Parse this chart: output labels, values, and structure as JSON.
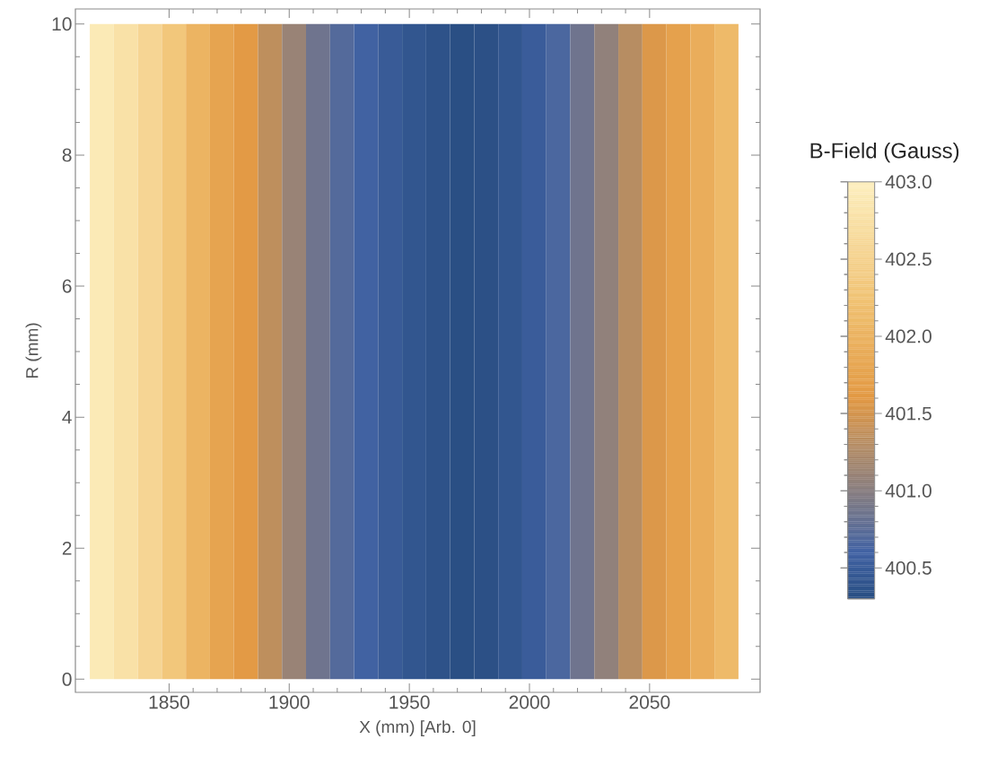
{
  "chart_data": {
    "type": "heatmap",
    "xlabel": "X (mm) [Arb. 0]",
    "ylabel": "R (mm)",
    "clabel": "B-Field (Gauss)",
    "x": [
      1822,
      1832,
      1842,
      1852,
      1862,
      1872,
      1882,
      1892,
      1902,
      1912,
      1922,
      1932,
      1942,
      1952,
      1962,
      1972,
      1982,
      1992,
      2002,
      2012,
      2022,
      2032,
      2042,
      2052,
      2062,
      2072,
      2082
    ],
    "y": [
      7.5,
      2.5
    ],
    "cells": [
      [
        402.9,
        402.75,
        402.55,
        402.3,
        402.0,
        401.75,
        401.6,
        401.35,
        401.1,
        400.85,
        400.7,
        400.58,
        400.48,
        400.4,
        400.35,
        400.3,
        400.32,
        400.4,
        400.5,
        400.65,
        400.85,
        401.05,
        401.3,
        401.55,
        401.7,
        401.9,
        402.1
      ],
      [
        402.9,
        402.75,
        402.55,
        402.3,
        402.0,
        401.75,
        401.6,
        401.35,
        401.1,
        400.85,
        400.7,
        400.58,
        400.48,
        400.4,
        400.35,
        400.3,
        400.32,
        400.4,
        400.5,
        400.65,
        400.85,
        401.05,
        401.3,
        401.55,
        401.7,
        401.9,
        402.1
      ]
    ],
    "xlim": [
      1811,
      2096
    ],
    "ylim": [
      -0.2,
      10.23
    ],
    "xticks": [
      1850,
      1900,
      1950,
      2000,
      2050
    ],
    "yticks": [
      0,
      2,
      4,
      6,
      8,
      10
    ],
    "clim": [
      400.3,
      403.0
    ],
    "cticks": [
      {
        "value": 400.5,
        "label": "400.5"
      },
      {
        "value": 401,
        "label": "401.0"
      },
      {
        "value": 401.5,
        "label": "401.5"
      },
      {
        "value": 402,
        "label": "402.0"
      },
      {
        "value": 402.5,
        "label": "402.5"
      },
      {
        "value": 403,
        "label": "403.0"
      }
    ]
  }
}
